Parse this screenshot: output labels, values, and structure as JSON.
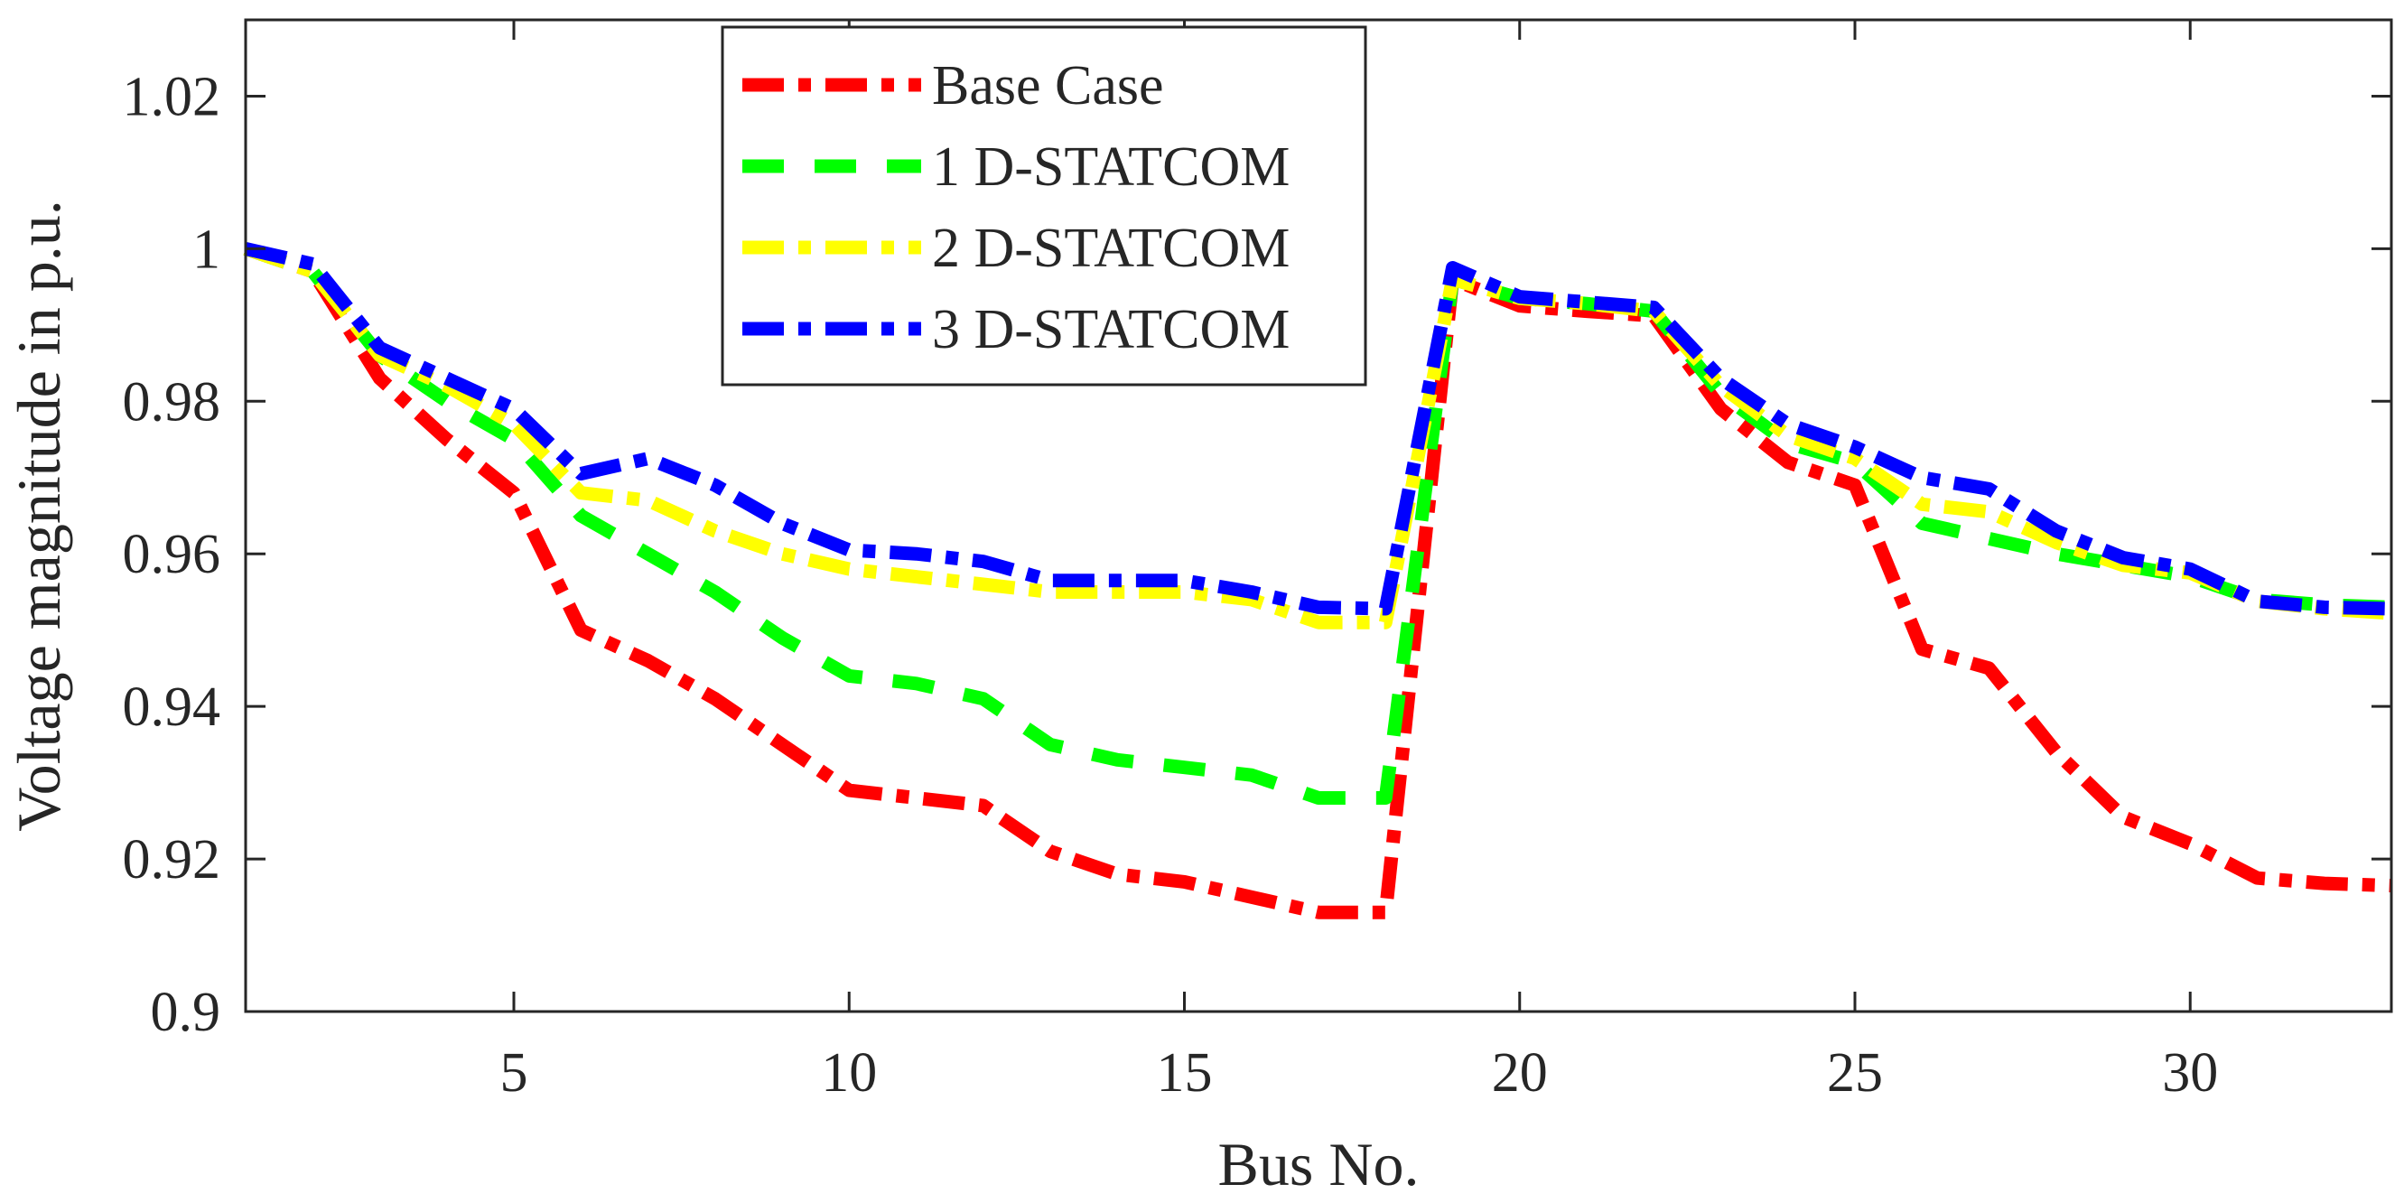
{
  "chart_data": {
    "type": "line",
    "title": "",
    "xlabel": "Bus No.",
    "ylabel": "Voltage magnitude in p.u.",
    "xlim": [
      1,
      33
    ],
    "ylim": [
      0.9,
      1.03
    ],
    "xticks": [
      5,
      10,
      15,
      20,
      25,
      30
    ],
    "yticks": [
      0.9,
      0.92,
      0.94,
      0.96,
      0.98,
      1.0,
      1.02
    ],
    "ytick_labels": [
      "0.9",
      "0.92",
      "0.94",
      "0.96",
      "0.98",
      "1",
      "1.02"
    ],
    "grid": false,
    "legend_position": "top-center",
    "x": [
      1,
      2,
      3,
      4,
      5,
      6,
      7,
      8,
      9,
      10,
      11,
      12,
      13,
      14,
      15,
      16,
      17,
      18,
      19,
      20,
      21,
      22,
      23,
      24,
      25,
      26,
      27,
      28,
      29,
      30,
      31,
      32,
      33
    ],
    "series": [
      {
        "name": "Base Case",
        "color": "#ff0000",
        "dash": "dash-dot",
        "values": [
          1.0,
          0.997,
          0.983,
          0.975,
          0.968,
          0.95,
          0.946,
          0.941,
          0.935,
          0.929,
          0.928,
          0.927,
          0.921,
          0.918,
          0.917,
          0.915,
          0.913,
          0.913,
          0.996,
          0.9925,
          0.9918,
          0.9912,
          0.979,
          0.972,
          0.969,
          0.9475,
          0.945,
          0.934,
          0.9255,
          0.922,
          0.9175,
          0.9168,
          0.9165
        ]
      },
      {
        "name": "1 D-STATCOM",
        "color": "#00ff00",
        "dash": "dash",
        "values": [
          1.0,
          0.997,
          0.986,
          0.98,
          0.975,
          0.965,
          0.96,
          0.955,
          0.949,
          0.944,
          0.943,
          0.941,
          0.935,
          0.933,
          0.932,
          0.931,
          0.928,
          0.928,
          0.996,
          0.9935,
          0.9928,
          0.9918,
          0.981,
          0.9745,
          0.972,
          0.964,
          0.962,
          0.96,
          0.9585,
          0.957,
          0.954,
          0.9533,
          0.953
        ]
      },
      {
        "name": "2 D-STATCOM",
        "color": "#ffff00",
        "dash": "dash-dot",
        "values": [
          1.0,
          0.997,
          0.986,
          0.982,
          0.977,
          0.968,
          0.967,
          0.963,
          0.96,
          0.958,
          0.957,
          0.956,
          0.955,
          0.955,
          0.955,
          0.954,
          0.951,
          0.951,
          0.996,
          0.9935,
          0.9928,
          0.9918,
          0.982,
          0.9755,
          0.9725,
          0.9665,
          0.9655,
          0.9615,
          0.9585,
          0.9575,
          0.9538,
          0.9528,
          0.9522
        ]
      },
      {
        "name": "3 D-STATCOM",
        "color": "#0000ff",
        "dash": "dash-dot",
        "values": [
          1.0,
          0.998,
          0.987,
          0.983,
          0.979,
          0.9705,
          0.9725,
          0.969,
          0.964,
          0.9605,
          0.96,
          0.959,
          0.9565,
          0.9565,
          0.9565,
          0.955,
          0.953,
          0.9528,
          0.9975,
          0.9937,
          0.993,
          0.9923,
          0.983,
          0.977,
          0.974,
          0.97,
          0.9685,
          0.963,
          0.9595,
          0.958,
          0.9538,
          0.953,
          0.9528
        ]
      }
    ]
  }
}
